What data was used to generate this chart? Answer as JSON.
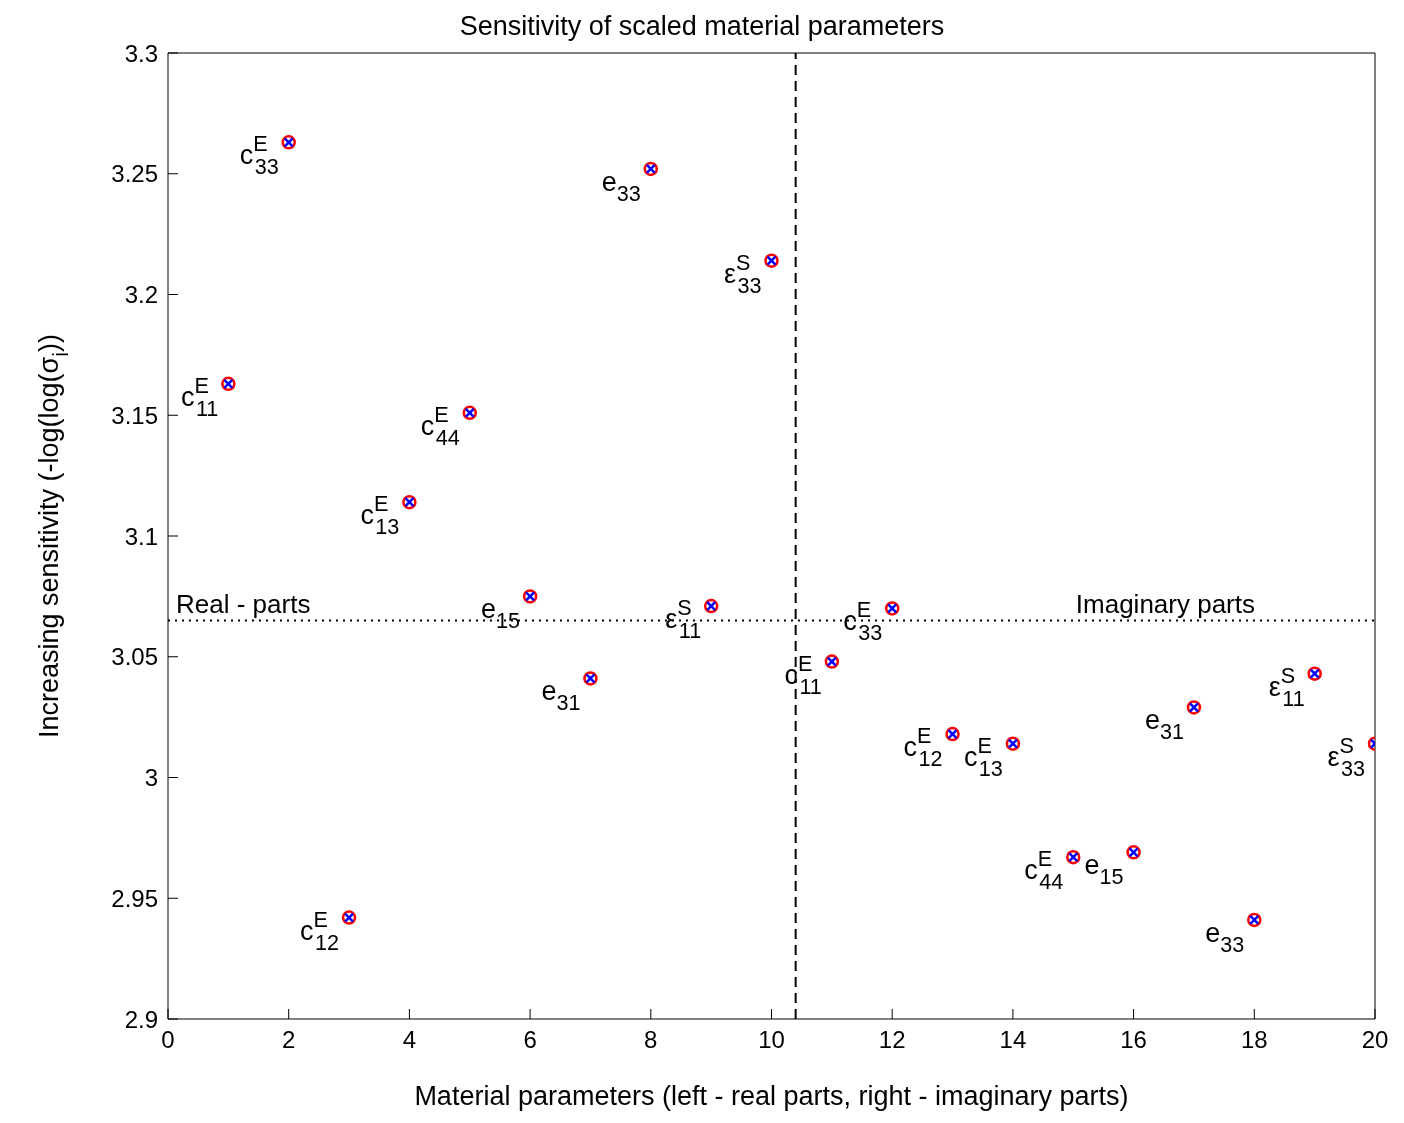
{
  "chart_data": {
    "type": "scatter",
    "title": "Sensitivity of scaled material parameters",
    "xlabel": "Material parameters (left - real parts, right - imaginary parts)",
    "ylabel": "Increasing sensitivity (-log(log(σ$_{i}$))",
    "x": [
      1,
      2,
      3,
      4,
      5,
      6,
      7,
      8,
      9,
      10,
      11,
      12,
      13,
      14,
      15,
      16,
      17,
      18,
      19,
      20
    ],
    "series": [
      {
        "color": "#ff0000",
        "marker": "circle",
        "values": [
          3.163,
          3.263,
          2.942,
          3.114,
          3.151,
          3.075,
          3.041,
          3.252,
          3.071,
          3.214,
          3.048,
          3.07,
          3.018,
          3.014,
          2.967,
          2.969,
          3.029,
          2.941,
          3.043,
          3.014
        ]
      },
      {
        "color": "#0000ff",
        "marker": "cross",
        "values": [
          3.163,
          3.263,
          2.942,
          3.114,
          3.151,
          3.075,
          3.041,
          3.252,
          3.071,
          3.214,
          3.048,
          3.07,
          3.018,
          3.014,
          2.967,
          2.969,
          3.029,
          2.941,
          3.043,
          3.014
        ]
      }
    ],
    "xlim": [
      0,
      20
    ],
    "xticks": [
      0,
      2,
      4,
      6,
      8,
      10,
      12,
      14,
      16,
      18,
      20
    ],
    "ylim": [
      2.9,
      3.3
    ],
    "yticks": [
      2.9,
      2.95,
      3,
      3.05,
      3.1,
      3.15,
      3.2,
      3.25,
      3.3
    ],
    "grid": false,
    "legend": false,
    "ref_lines": [
      {
        "axis": "x",
        "value": 10.4,
        "line_style": "dashed",
        "color": "#000000"
      },
      {
        "axis": "y",
        "value": 3.065,
        "line_style": "dotted",
        "color": "#000000",
        "label": "Real - parts"
      }
    ],
    "annotations": [
      "Imaginary parts",
      {
        "text": "c$^{E}$$_{11}$",
        "x": 1,
        "y": 3.163
      },
      {
        "text": "c$^{E}$$_{33}$",
        "x": 2,
        "y": 3.263
      },
      {
        "text": "c$^{E}$$_{12}$",
        "x": 3,
        "y": 2.942
      },
      {
        "text": "c$^{E}$$_{13}$",
        "x": 4,
        "y": 3.114
      },
      {
        "text": "c$^{E}$$_{44}$",
        "x": 5,
        "y": 3.151
      },
      {
        "text": "e$_{15}$",
        "x": 6,
        "y": 3.075
      },
      {
        "text": "e$_{31}$",
        "x": 7,
        "y": 3.041
      },
      {
        "text": "e$_{33}$",
        "x": 8,
        "y": 3.252
      },
      {
        "text": "ε$^{S}$$_{11}$",
        "x": 9,
        "y": 3.071
      },
      {
        "text": "ε$^{S}$$_{33}$",
        "x": 10,
        "y": 3.214
      },
      {
        "text": "c$^{E}$$_{11}$",
        "x": 11,
        "y": 3.048
      },
      {
        "text": "c$^{E}$$_{33}$",
        "x": 12,
        "y": 3.07
      },
      {
        "text": "c$^{E}$$_{12}$",
        "x": 13,
        "y": 3.018
      },
      {
        "text": "c$^{E}$$_{13}$",
        "x": 14,
        "y": 3.014
      },
      {
        "text": "c$^{E}$$_{44}$",
        "x": 15,
        "y": 2.967
      },
      {
        "text": "e$_{15}$",
        "x": 16,
        "y": 2.969
      },
      {
        "text": "e$_{31}$",
        "x": 17,
        "y": 3.029
      },
      {
        "text": "e$_{33}$",
        "x": 18,
        "y": 2.941
      },
      {
        "text": "ε$^{S}$$_{11}$",
        "x": 19,
        "y": 3.043
      },
      {
        "text": "ε$^{S}$$_{33}$",
        "x": 20,
        "y": 3.014
      }
    ]
  }
}
